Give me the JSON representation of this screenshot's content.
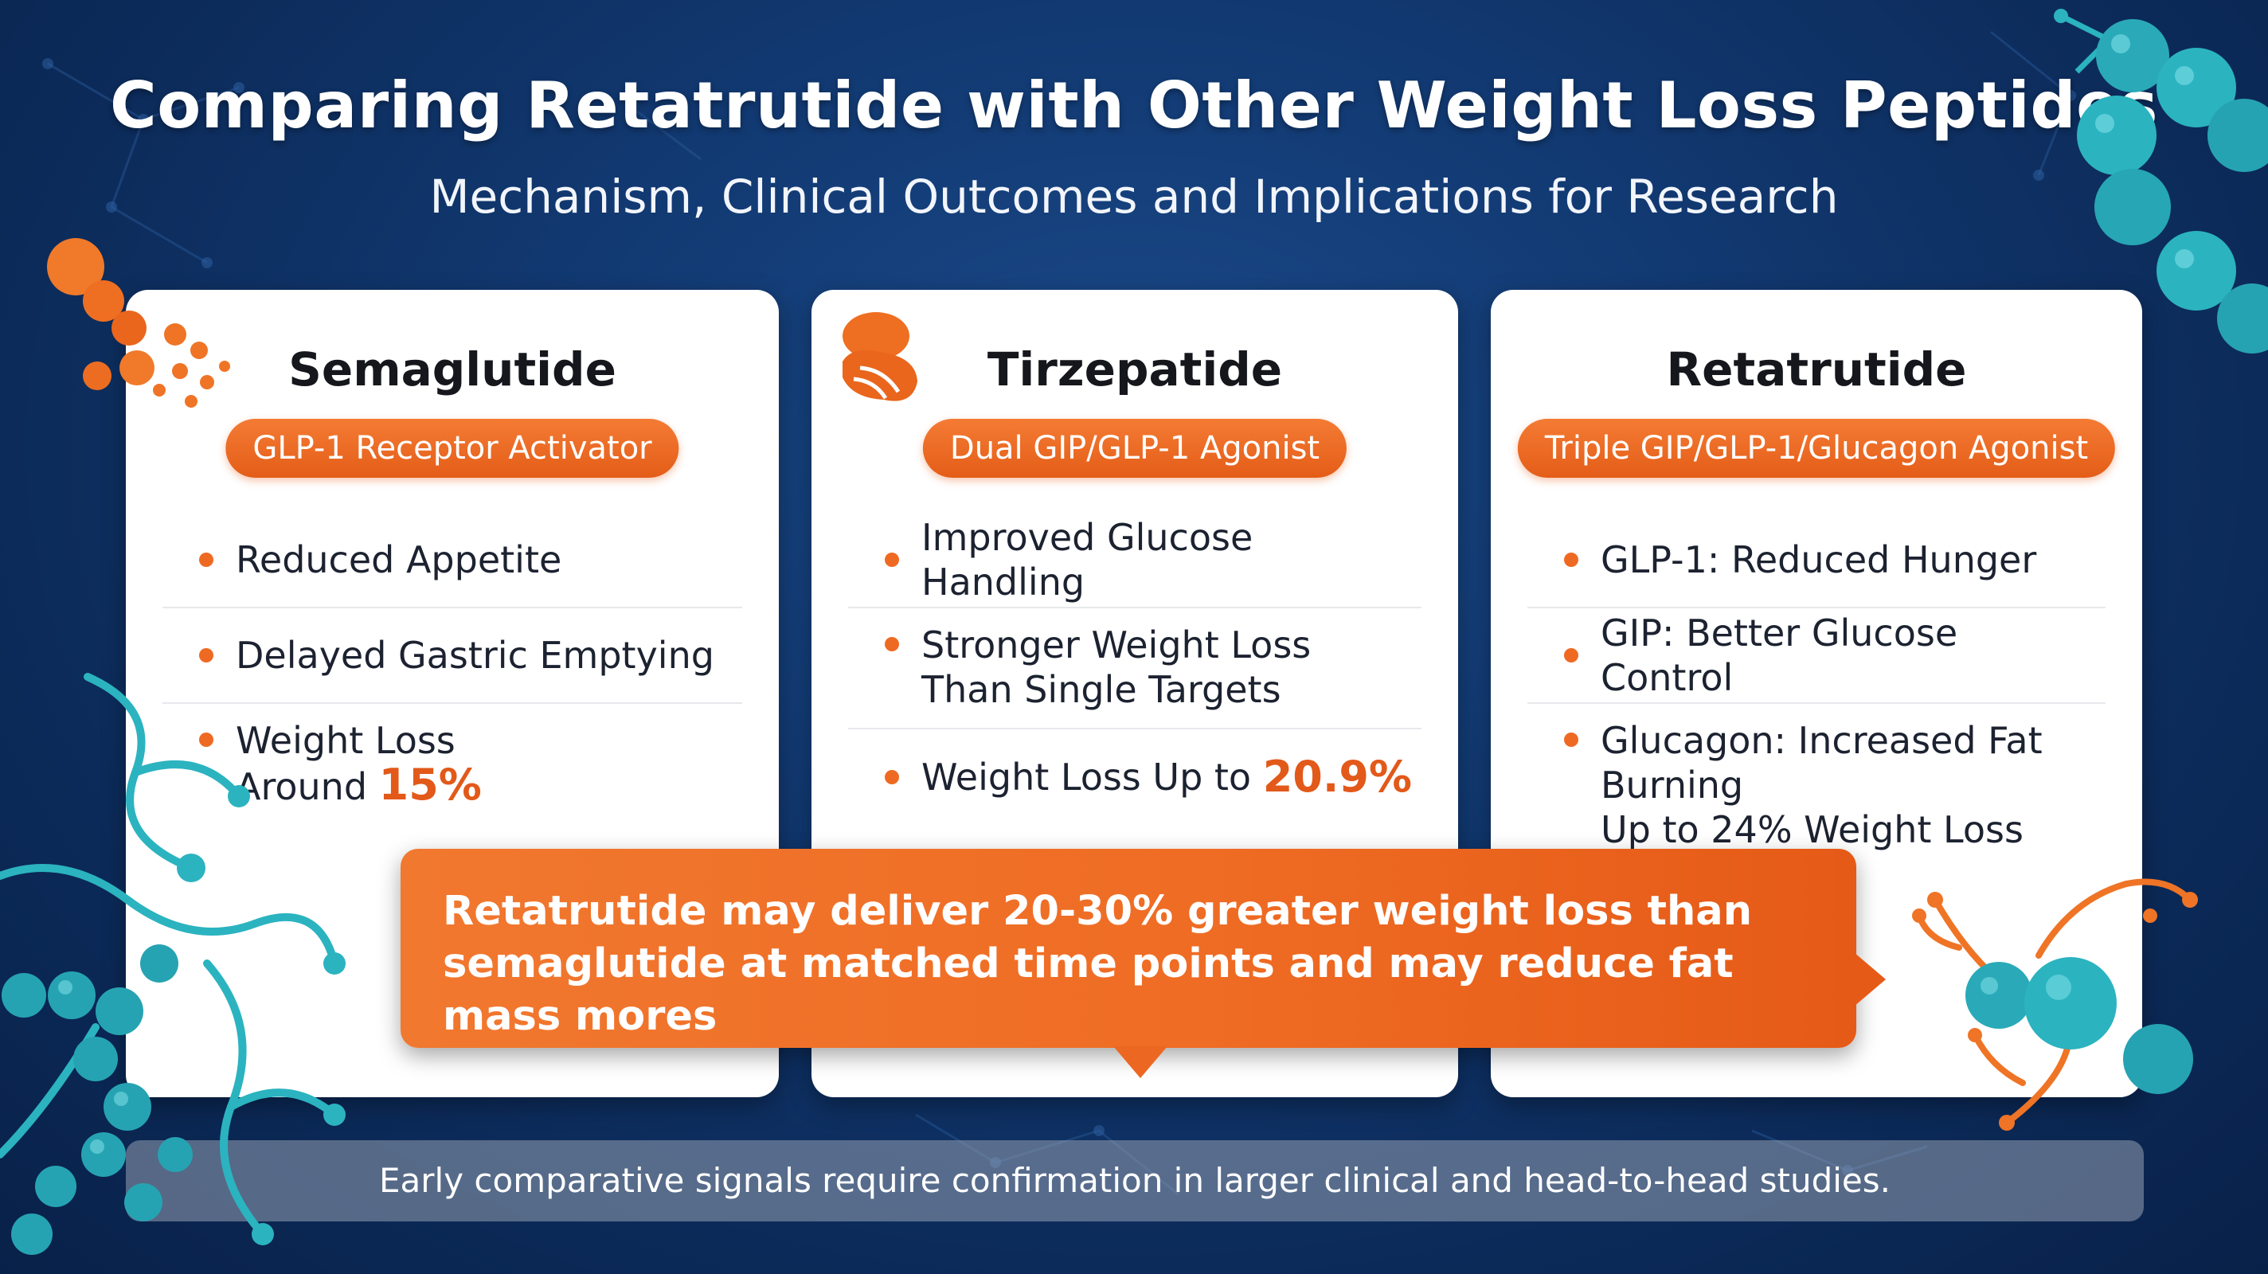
{
  "header": {
    "title": "Comparing Retatrutide with Other Weight Loss Peptides",
    "subtitle": "Mechanism, Clinical Outcomes and Implications for Research"
  },
  "cards": [
    {
      "name": "Semaglutide",
      "mechanism": "GLP-1 Receptor Activator",
      "bullets": [
        "Reduced Appetite",
        "Delayed Gastric Emptying",
        {
          "line1": "Weight Loss",
          "line2_prefix": "Around ",
          "highlight": "15%"
        }
      ]
    },
    {
      "name": "Tirzepatide",
      "mechanism": "Dual GIP/GLP-1 Agonist",
      "bullets": [
        "Improved Glucose Handling",
        {
          "line1": "Stronger Weight Loss",
          "line2": "Than Single Targets"
        },
        {
          "prefix": "Weight Loss Up to ",
          "highlight": "20.9%"
        }
      ]
    },
    {
      "name": "Retatrutide",
      "mechanism": "Triple GIP/GLP-1/Glucagon Agonist",
      "bullets": [
        "GLP-1: Reduced Hunger",
        "GIP: Better Glucose Control",
        {
          "line1": "Glucagon: Increased Fat Burning",
          "line2": "Up to 24% Weight Loss"
        }
      ]
    }
  ],
  "callout": {
    "line1": "Retatrutide may deliver 20-30% greater weight loss than",
    "line2": "semaglutide at matched time points and may reduce fat mass mores"
  },
  "footer": "Early comparative signals require confirmation in larger clinical and head-to-head studies.",
  "colors": {
    "background": "#123a73",
    "accent_orange": "#ee6a23",
    "molecule_teal": "#2bb3c0",
    "card": "#ffffff",
    "footer_bar": "#8a95a8"
  },
  "icons": [
    "orange-molecule-cluster-icon",
    "orange-organ-icon",
    "teal-molecule-chain-icon"
  ]
}
